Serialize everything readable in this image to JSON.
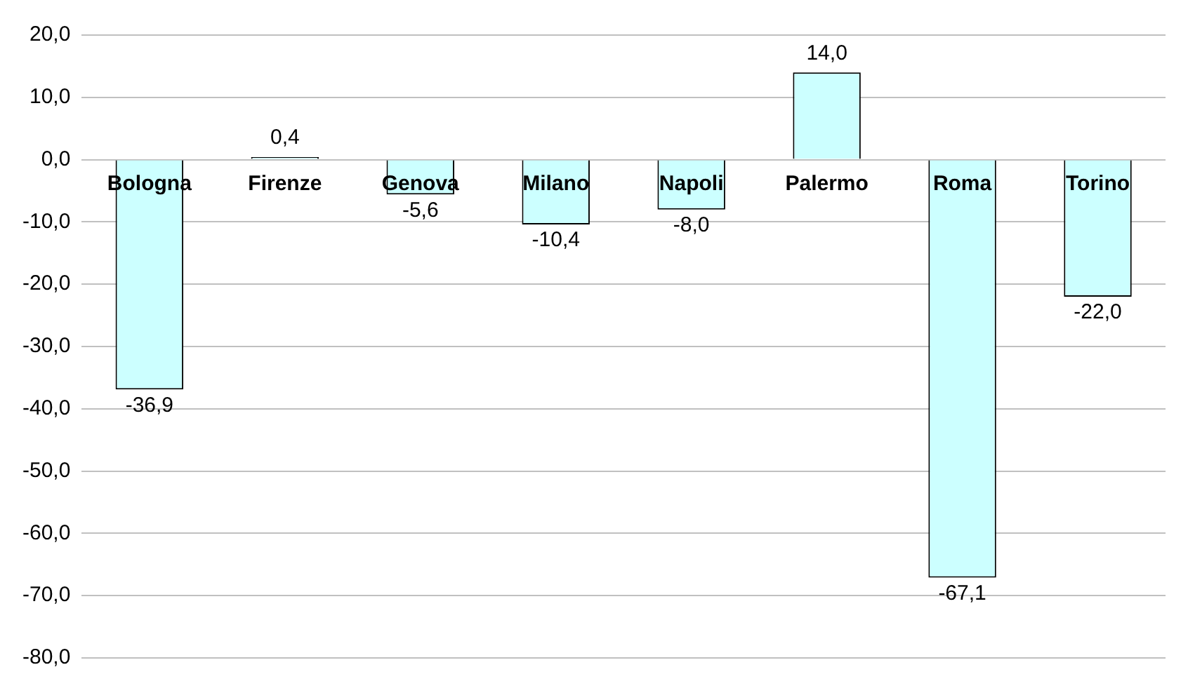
{
  "chart_data": {
    "type": "bar",
    "categories": [
      "Bologna",
      "Firenze",
      "Genova",
      "Milano",
      "Napoli",
      "Palermo",
      "Roma",
      "Torino"
    ],
    "values": [
      -36.9,
      0.4,
      -5.6,
      -10.4,
      -8.0,
      14.0,
      -67.1,
      -22.0
    ],
    "value_labels": [
      "-36,9",
      "0,4",
      "-5,6",
      "-10,4",
      "-8,0",
      "14,0",
      "-67,1",
      "-22,0"
    ],
    "color": "#ccffff",
    "ylim": [
      -80,
      20
    ],
    "yticks": [
      {
        "value": 20,
        "label": "20,0"
      },
      {
        "value": 10,
        "label": "10,0"
      },
      {
        "value": 0,
        "label": "0,0"
      },
      {
        "value": -10,
        "label": "-10,0"
      },
      {
        "value": -20,
        "label": "-20,0"
      },
      {
        "value": -30,
        "label": "-30,0"
      },
      {
        "value": -40,
        "label": "-40,0"
      },
      {
        "value": -50,
        "label": "-50,0"
      },
      {
        "value": -60,
        "label": "-60,0"
      },
      {
        "value": -70,
        "label": "-70,0"
      },
      {
        "value": -80,
        "label": "-80,0"
      }
    ],
    "grid": "y",
    "legend": false
  }
}
